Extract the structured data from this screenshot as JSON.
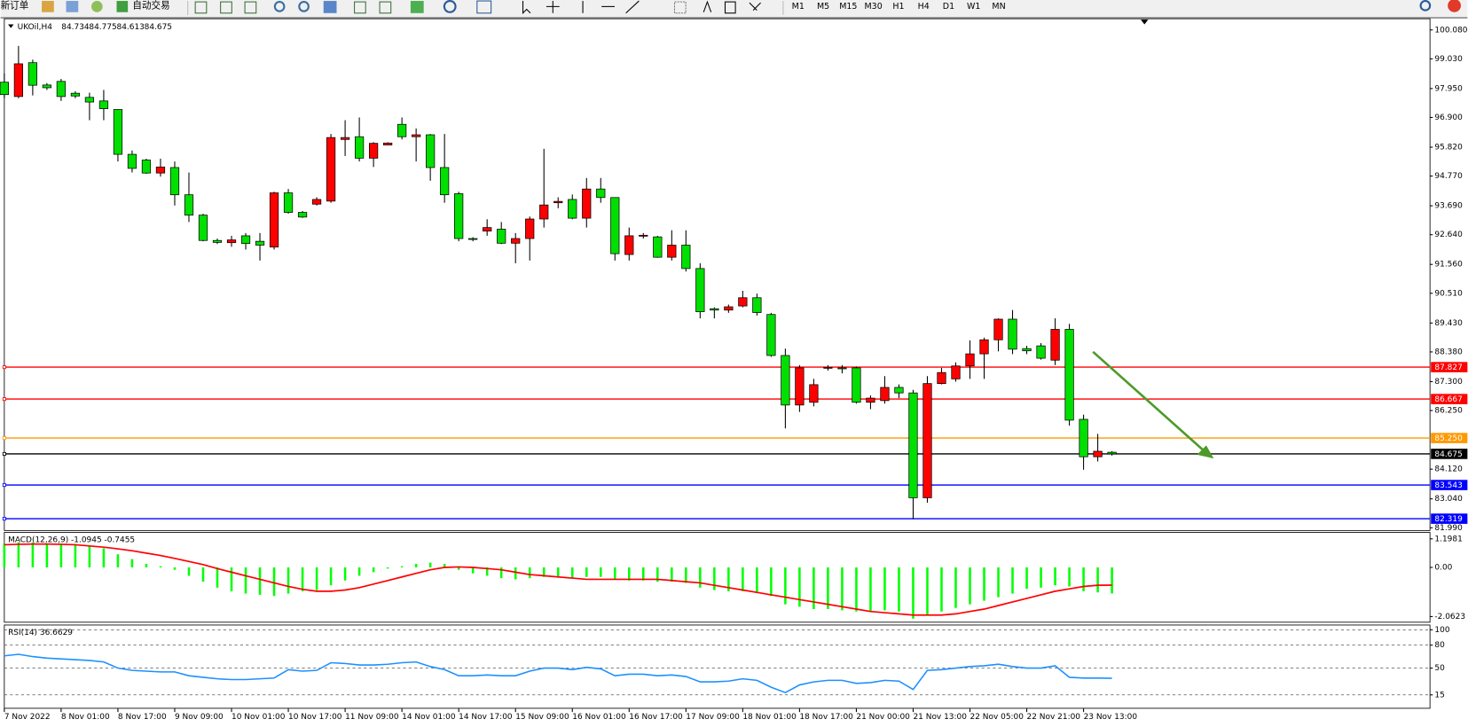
{
  "toolbar": {
    "new_order": "新订单",
    "auto_trading": "自动交易",
    "timeframes": [
      "M1",
      "M5",
      "M15",
      "M30",
      "H1",
      "H4",
      "D1",
      "W1",
      "MN"
    ]
  },
  "chart_data": [
    {
      "type": "candlestick",
      "title": "UKOil,H4",
      "header_values": [
        84.734,
        84.775,
        84.613,
        84.675
      ],
      "up_color": "#ff0000",
      "down_color": "#00e000",
      "categories": [
        "7 Nov 2022",
        null,
        null,
        null,
        "8 Nov 01:00",
        null,
        null,
        null,
        "8 Nov 17:00",
        null,
        null,
        null,
        "9 Nov 09:00",
        null,
        null,
        null,
        "10 Nov 01:00",
        null,
        null,
        null,
        "10 Nov 17:00",
        null,
        null,
        null,
        "11 Nov 09:00",
        null,
        null,
        null,
        "14 Nov 01:00",
        null,
        null,
        null,
        "14 Nov 17:00",
        null,
        null,
        null,
        "15 Nov 09:00",
        null,
        null,
        null,
        "16 Nov 01:00",
        null,
        null,
        null,
        "16 Nov 17:00",
        null,
        null,
        null,
        "17 Nov 09:00",
        null,
        null,
        null,
        "18 Nov 01:00",
        null,
        null,
        null,
        "18 Nov 17:00",
        null,
        null,
        null,
        "21 Nov 00:00",
        null,
        null,
        null,
        "21 Nov 13:00",
        null,
        null,
        null,
        "22 Nov 05:00",
        null,
        null,
        null,
        "22 Nov 21:00",
        null,
        null,
        null,
        "23 Nov 13:00",
        null,
        null
      ],
      "open": [
        98.18,
        97.66,
        98.89,
        98.08,
        98.21,
        97.78,
        97.63,
        97.5,
        97.19,
        95.56,
        95.35,
        94.88,
        95.08,
        94.09,
        93.35,
        92.43,
        92.35,
        92.6,
        92.4,
        92.19,
        94.16,
        93.45,
        93.75,
        93.86,
        96.1,
        96.2,
        95.42,
        95.9,
        96.65,
        96.2,
        96.27,
        95.08,
        94.13,
        92.5,
        92.77,
        92.84,
        92.33,
        92.5,
        93.21,
        93.8,
        93.92,
        93.24,
        94.3,
        93.99,
        91.92,
        92.6,
        92.56,
        91.82,
        92.26,
        91.41,
        89.95,
        89.9,
        90.05,
        90.35,
        89.74,
        88.25,
        86.45,
        86.55,
        87.8,
        87.8,
        87.8,
        86.55,
        86.61,
        87.09,
        86.89,
        83.08,
        87.23,
        87.4,
        87.87,
        88.31,
        88.82,
        89.57,
        88.5,
        88.6,
        88.08,
        89.2,
        85.93,
        84.57,
        84.734
      ],
      "high": [
        98.5,
        99.5,
        99.0,
        98.15,
        98.3,
        97.85,
        97.8,
        97.9,
        97.2,
        95.7,
        95.4,
        95.4,
        95.3,
        94.9,
        93.4,
        92.5,
        92.6,
        92.7,
        92.7,
        94.2,
        94.3,
        93.5,
        94.0,
        96.3,
        96.8,
        96.9,
        96.0,
        96.0,
        96.9,
        96.5,
        96.3,
        96.3,
        94.2,
        92.55,
        93.2,
        93.1,
        92.7,
        93.3,
        95.76,
        94.0,
        94.1,
        94.7,
        94.7,
        94.0,
        92.9,
        92.7,
        92.6,
        92.8,
        92.8,
        91.6,
        90.0,
        90.1,
        90.6,
        90.5,
        89.8,
        88.5,
        87.9,
        87.4,
        87.9,
        87.9,
        87.85,
        86.8,
        87.5,
        87.2,
        87.0,
        87.5,
        87.8,
        88.0,
        88.8,
        88.9,
        89.6,
        89.9,
        88.6,
        88.7,
        89.6,
        89.4,
        86.1,
        85.4,
        84.775
      ],
      "low": [
        97.6,
        97.6,
        97.7,
        97.9,
        97.5,
        97.6,
        96.8,
        96.8,
        95.3,
        94.9,
        94.85,
        94.75,
        93.7,
        93.1,
        92.4,
        92.3,
        92.2,
        92.1,
        91.7,
        92.1,
        93.4,
        93.25,
        93.7,
        93.8,
        95.5,
        95.3,
        95.1,
        95.9,
        96.1,
        95.3,
        94.6,
        93.8,
        92.4,
        92.4,
        92.6,
        92.3,
        91.6,
        91.7,
        92.9,
        93.6,
        93.2,
        92.9,
        93.8,
        91.7,
        91.7,
        92.5,
        91.8,
        91.7,
        91.3,
        89.6,
        89.6,
        89.8,
        90.0,
        89.7,
        88.2,
        85.6,
        86.2,
        86.4,
        87.7,
        87.6,
        86.5,
        86.3,
        86.5,
        86.7,
        82.3,
        82.9,
        87.2,
        87.3,
        87.4,
        87.4,
        88.4,
        88.3,
        88.3,
        88.1,
        87.9,
        85.7,
        84.1,
        84.4,
        84.613
      ],
      "close": [
        97.73,
        98.85,
        98.07,
        97.98,
        97.66,
        97.68,
        97.46,
        97.22,
        95.56,
        95.05,
        94.88,
        95.1,
        94.09,
        93.35,
        92.43,
        92.36,
        92.45,
        92.32,
        92.26,
        94.16,
        93.45,
        93.28,
        93.92,
        96.17,
        96.17,
        95.42,
        95.96,
        95.97,
        96.2,
        96.27,
        95.08,
        94.09,
        92.5,
        92.48,
        92.9,
        92.33,
        92.5,
        93.21,
        93.72,
        93.85,
        93.24,
        94.3,
        93.99,
        91.95,
        92.6,
        92.62,
        91.82,
        92.26,
        91.41,
        89.84,
        89.9,
        90.02,
        90.35,
        89.81,
        88.25,
        86.45,
        87.8,
        87.19,
        87.82,
        87.78,
        86.55,
        86.7,
        87.09,
        86.89,
        83.08,
        87.23,
        87.63,
        87.87,
        88.31,
        88.82,
        89.57,
        88.48,
        88.42,
        88.15,
        89.2,
        85.9,
        84.57,
        84.77,
        84.675
      ],
      "levels": [
        {
          "value": 87.827,
          "color": "#ff0000"
        },
        {
          "value": 86.667,
          "color": "#ff0000"
        },
        {
          "value": 85.25,
          "label": "85.250",
          "color": "#ff9900"
        },
        {
          "value": 84.675,
          "color": "#000000"
        },
        {
          "value": 83.543,
          "color": "#0000ff"
        },
        {
          "value": 82.319,
          "color": "#0000ff"
        }
      ],
      "ylim": [
        81.89,
        100.42
      ],
      "yticks": [
        {
          "value": 100.08,
          "label": "100.080"
        },
        {
          "value": 99.03,
          "label": "99.030"
        },
        {
          "value": 97.95,
          "label": "97.950"
        },
        {
          "value": 96.9,
          "label": "96.900"
        },
        {
          "value": 95.82,
          "label": "95.820"
        },
        {
          "value": 94.77,
          "label": "94.770"
        },
        {
          "value": 93.69,
          "label": "93.690"
        },
        {
          "value": 92.64,
          "label": "92.640"
        },
        {
          "value": 91.56,
          "label": "91.560"
        },
        {
          "value": 90.51,
          "label": "90.510"
        },
        {
          "value": 89.43,
          "label": "89.430"
        },
        {
          "value": 88.38,
          "label": "88.380"
        },
        {
          "value": 87.3,
          "label": "87.300"
        },
        {
          "value": 86.25,
          "label": "86.250"
        },
        {
          "value": 84.12,
          "label": "84.120"
        },
        {
          "value": 83.04,
          "label": "83.040"
        },
        {
          "value": 81.99,
          "label": "81.990"
        }
      ]
    },
    {
      "type": "macd",
      "title": "MACD(12,26,9) -1.0945 -0.7455",
      "histogram": {
        "color": "#00ff00",
        "values": [
          1.0,
          1.05,
          1.05,
          1.0,
          1.0,
          0.95,
          0.9,
          0.8,
          0.55,
          0.35,
          0.15,
          0.05,
          -0.1,
          -0.35,
          -0.6,
          -0.85,
          -1.0,
          -1.1,
          -1.15,
          -1.2,
          -1.1,
          -1.0,
          -0.95,
          -0.75,
          -0.55,
          -0.35,
          -0.2,
          -0.05,
          0.05,
          0.15,
          0.2,
          0.15,
          -0.1,
          -0.25,
          -0.35,
          -0.45,
          -0.5,
          -0.45,
          -0.4,
          -0.4,
          -0.45,
          -0.4,
          -0.4,
          -0.5,
          -0.55,
          -0.55,
          -0.6,
          -0.6,
          -0.65,
          -0.85,
          -0.95,
          -1.0,
          -1.0,
          -1.05,
          -1.2,
          -1.55,
          -1.65,
          -1.75,
          -1.75,
          -1.8,
          -1.85,
          -1.85,
          -1.8,
          -1.85,
          -2.15,
          -2.0,
          -1.85,
          -1.7,
          -1.55,
          -1.4,
          -1.25,
          -1.1,
          -0.9,
          -0.85,
          -0.75,
          -0.8,
          -1.0,
          -1.05,
          -1.0945
        ]
      },
      "signal": {
        "color": "#ff0000",
        "values": [
          0.95,
          0.97,
          0.98,
          0.98,
          0.97,
          0.95,
          0.9,
          0.85,
          0.78,
          0.7,
          0.6,
          0.5,
          0.38,
          0.25,
          0.12,
          -0.05,
          -0.2,
          -0.35,
          -0.5,
          -0.65,
          -0.8,
          -0.92,
          -1.0,
          -1.0,
          -0.95,
          -0.85,
          -0.7,
          -0.55,
          -0.4,
          -0.25,
          -0.1,
          0,
          0.02,
          0,
          -0.05,
          -0.1,
          -0.2,
          -0.3,
          -0.35,
          -0.4,
          -0.45,
          -0.5,
          -0.5,
          -0.5,
          -0.5,
          -0.5,
          -0.5,
          -0.55,
          -0.6,
          -0.65,
          -0.75,
          -0.85,
          -0.95,
          -1.05,
          -1.15,
          -1.25,
          -1.35,
          -1.45,
          -1.55,
          -1.65,
          -1.75,
          -1.85,
          -1.9,
          -1.95,
          -2.0,
          -2.0,
          -2.0,
          -1.95,
          -1.85,
          -1.75,
          -1.6,
          -1.45,
          -1.3,
          -1.15,
          -1.0,
          -0.9,
          -0.8,
          -0.75,
          -0.7455
        ]
      },
      "ylim": [
        -2.3,
        1.47
      ],
      "yticks": [
        1.1981,
        {
          "value": 0,
          "label": "0.00"
        },
        -2.0623
      ]
    },
    {
      "type": "rsi",
      "title": "RSI(14) 36.6629",
      "color": "#1e90ff",
      "values": [
        66,
        68,
        65,
        63,
        62,
        61,
        60,
        58,
        50,
        47,
        46,
        45,
        45,
        40,
        38,
        36,
        35,
        35,
        36,
        37,
        48,
        46,
        47,
        57,
        56,
        54,
        54,
        55,
        57,
        58,
        52,
        48,
        40,
        40,
        41,
        40,
        40,
        46,
        50,
        50,
        48,
        51,
        49,
        40,
        42,
        42,
        40,
        41,
        39,
        32,
        32,
        33,
        36,
        34,
        25,
        18,
        28,
        32,
        34,
        34,
        30,
        31,
        34,
        33,
        22,
        47,
        48,
        50,
        52,
        53,
        55,
        52,
        50,
        50,
        53,
        38,
        37,
        37,
        36.6629
      ],
      "ylim": [
        -2.5,
        106.25
      ],
      "yticks": [
        100,
        80,
        50,
        15
      ]
    }
  ]
}
